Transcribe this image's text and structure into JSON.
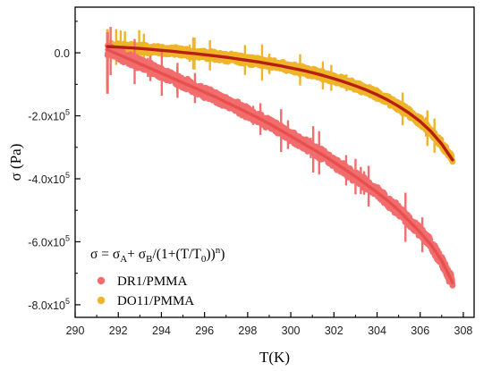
{
  "chart_data": {
    "type": "scatter",
    "xlabel": "T(K)",
    "ylabel": "σ (Pa)",
    "xlim": [
      290,
      308.5
    ],
    "ylim": [
      -840000,
      145000
    ],
    "x_ticks": [
      290,
      292,
      294,
      296,
      298,
      300,
      302,
      304,
      306,
      308
    ],
    "y_ticks": [
      {
        "value": 0,
        "label": "0.0",
        "sup": ""
      },
      {
        "value": -200000,
        "label": "-2.0x10",
        "sup": "5"
      },
      {
        "value": -400000,
        "label": "-4.0x10",
        "sup": "5"
      },
      {
        "value": -600000,
        "label": "-6.0x10",
        "sup": "5"
      },
      {
        "value": -800000,
        "label": "-8.0x10",
        "sup": "5"
      }
    ],
    "grid": false,
    "legend_position": "bottom-left",
    "equation": {
      "parts": [
        {
          "t": "σ = σ",
          "sub": "",
          "sup": ""
        },
        {
          "t": "",
          "sub": "A",
          "sup": ""
        },
        {
          "t": "+ σ",
          "sub": "",
          "sup": ""
        },
        {
          "t": "",
          "sub": "B",
          "sup": ""
        },
        {
          "t": "/(1+(T/T",
          "sub": "",
          "sup": ""
        },
        {
          "t": "",
          "sub": "0",
          "sup": ""
        },
        {
          "t": "))",
          "sub": "",
          "sup": ""
        },
        {
          "t": "",
          "sub": "",
          "sup": "n"
        },
        {
          "t": ")",
          "sub": "",
          "sup": ""
        }
      ]
    },
    "series": [
      {
        "name": "DR1/PMMA",
        "color": "#f26d6d",
        "fit_color": "#e8504f",
        "x": [
          291.5,
          292.0,
          292.5,
          293.0,
          293.5,
          294.0,
          294.5,
          295.0,
          295.5,
          296.0,
          296.5,
          297.0,
          297.5,
          298.0,
          298.5,
          299.0,
          299.5,
          300.0,
          300.5,
          301.0,
          301.5,
          302.0,
          302.5,
          303.0,
          303.5,
          304.0,
          304.5,
          305.0,
          305.5,
          306.0,
          306.5,
          307.0,
          307.5
        ],
        "y": [
          10000,
          -5000,
          -20000,
          -35000,
          -50000,
          -65000,
          -80000,
          -95000,
          -110000,
          -125000,
          -140000,
          -157000,
          -173000,
          -190000,
          -207000,
          -225000,
          -245000,
          -265000,
          -285000,
          -305000,
          -325000,
          -347000,
          -370000,
          -393000,
          -418000,
          -443000,
          -470000,
          -500000,
          -535000,
          -570000,
          -610000,
          -660000,
          -730000
        ],
        "fit_y": [
          10000,
          -5000,
          -20000,
          -35000,
          -50000,
          -65000,
          -80000,
          -95000,
          -110000,
          -125000,
          -140000,
          -157000,
          -173000,
          -190000,
          -207000,
          -225000,
          -245000,
          -265000,
          -285000,
          -305000,
          -325000,
          -347000,
          -370000,
          -393000,
          -418000,
          -443000,
          -470000,
          -500000,
          -535000,
          -570000,
          -610000,
          -660000,
          -730000
        ]
      },
      {
        "name": "DO11/PMMA",
        "color": "#f0b42a",
        "fit_color": "#b51f12",
        "x": [
          291.5,
          292.0,
          292.5,
          293.0,
          293.5,
          294.0,
          294.5,
          295.0,
          295.5,
          296.0,
          296.5,
          297.0,
          297.5,
          298.0,
          298.5,
          299.0,
          299.5,
          300.0,
          300.5,
          301.0,
          301.5,
          302.0,
          302.5,
          303.0,
          303.5,
          304.0,
          304.5,
          305.0,
          305.5,
          306.0,
          306.5,
          307.0,
          307.5
        ],
        "y": [
          20000,
          18000,
          16000,
          14000,
          11000,
          8000,
          5000,
          1000,
          -2000,
          -6000,
          -10000,
          -14000,
          -19000,
          -24000,
          -29000,
          -35000,
          -41000,
          -48000,
          -55000,
          -63000,
          -72000,
          -82000,
          -93000,
          -105000,
          -118000,
          -133000,
          -150000,
          -170000,
          -192000,
          -218000,
          -250000,
          -290000,
          -340000
        ],
        "fit_y": [
          20000,
          18000,
          16000,
          14000,
          11000,
          8000,
          5000,
          1000,
          -2000,
          -6000,
          -10000,
          -14000,
          -19000,
          -24000,
          -29000,
          -35000,
          -41000,
          -48000,
          -55000,
          -63000,
          -72000,
          -82000,
          -93000,
          -105000,
          -118000,
          -133000,
          -150000,
          -170000,
          -192000,
          -218000,
          -250000,
          -290000,
          -340000
        ]
      }
    ]
  }
}
